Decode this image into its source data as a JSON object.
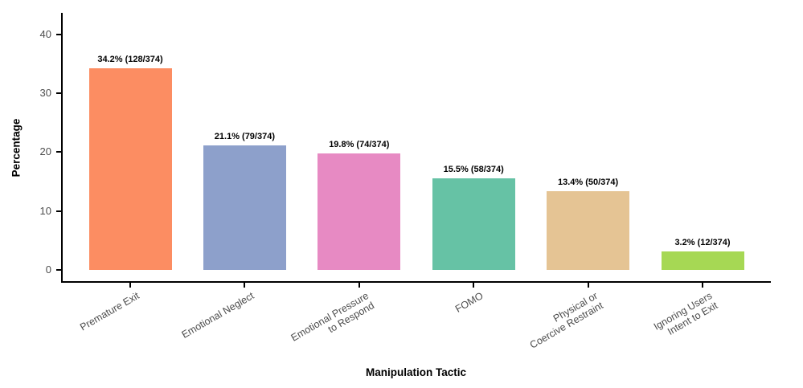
{
  "chart_data": {
    "type": "bar",
    "title": "",
    "xlabel": "Manipulation Tactic",
    "ylabel": "Percentage",
    "categories": [
      "Premature Exit",
      "Emotional Neglect",
      "Emotional Pressure\nto Respond",
      "FOMO",
      "Physical or\nCoercive Restraint",
      "Ignoring Users\nIntent to Exit"
    ],
    "values": [
      34.2,
      21.1,
      19.8,
      15.5,
      13.4,
      3.2
    ],
    "counts": [
      "128/374",
      "79/374",
      "74/374",
      "58/374",
      "50/374",
      "12/374"
    ],
    "bar_labels": [
      "34.2% (128/374)",
      "21.1% (79/374)",
      "19.8% (74/374)",
      "15.5% (58/374)",
      "13.4% (50/374)",
      "3.2% (12/374)"
    ],
    "bar_colors": [
      "#FC8D62",
      "#8DA0CB",
      "#E78AC3",
      "#66C2A5",
      "#E5C494",
      "#A6D854"
    ],
    "y_ticks": [
      0,
      10,
      20,
      30,
      40
    ],
    "ylim": [
      0,
      44
    ],
    "grid": false,
    "legend": "none",
    "axis_text_color": "#4d4d4d",
    "axis_line_color": "#000000",
    "label_text_color": "#000000",
    "background_color": "#ffffff"
  }
}
